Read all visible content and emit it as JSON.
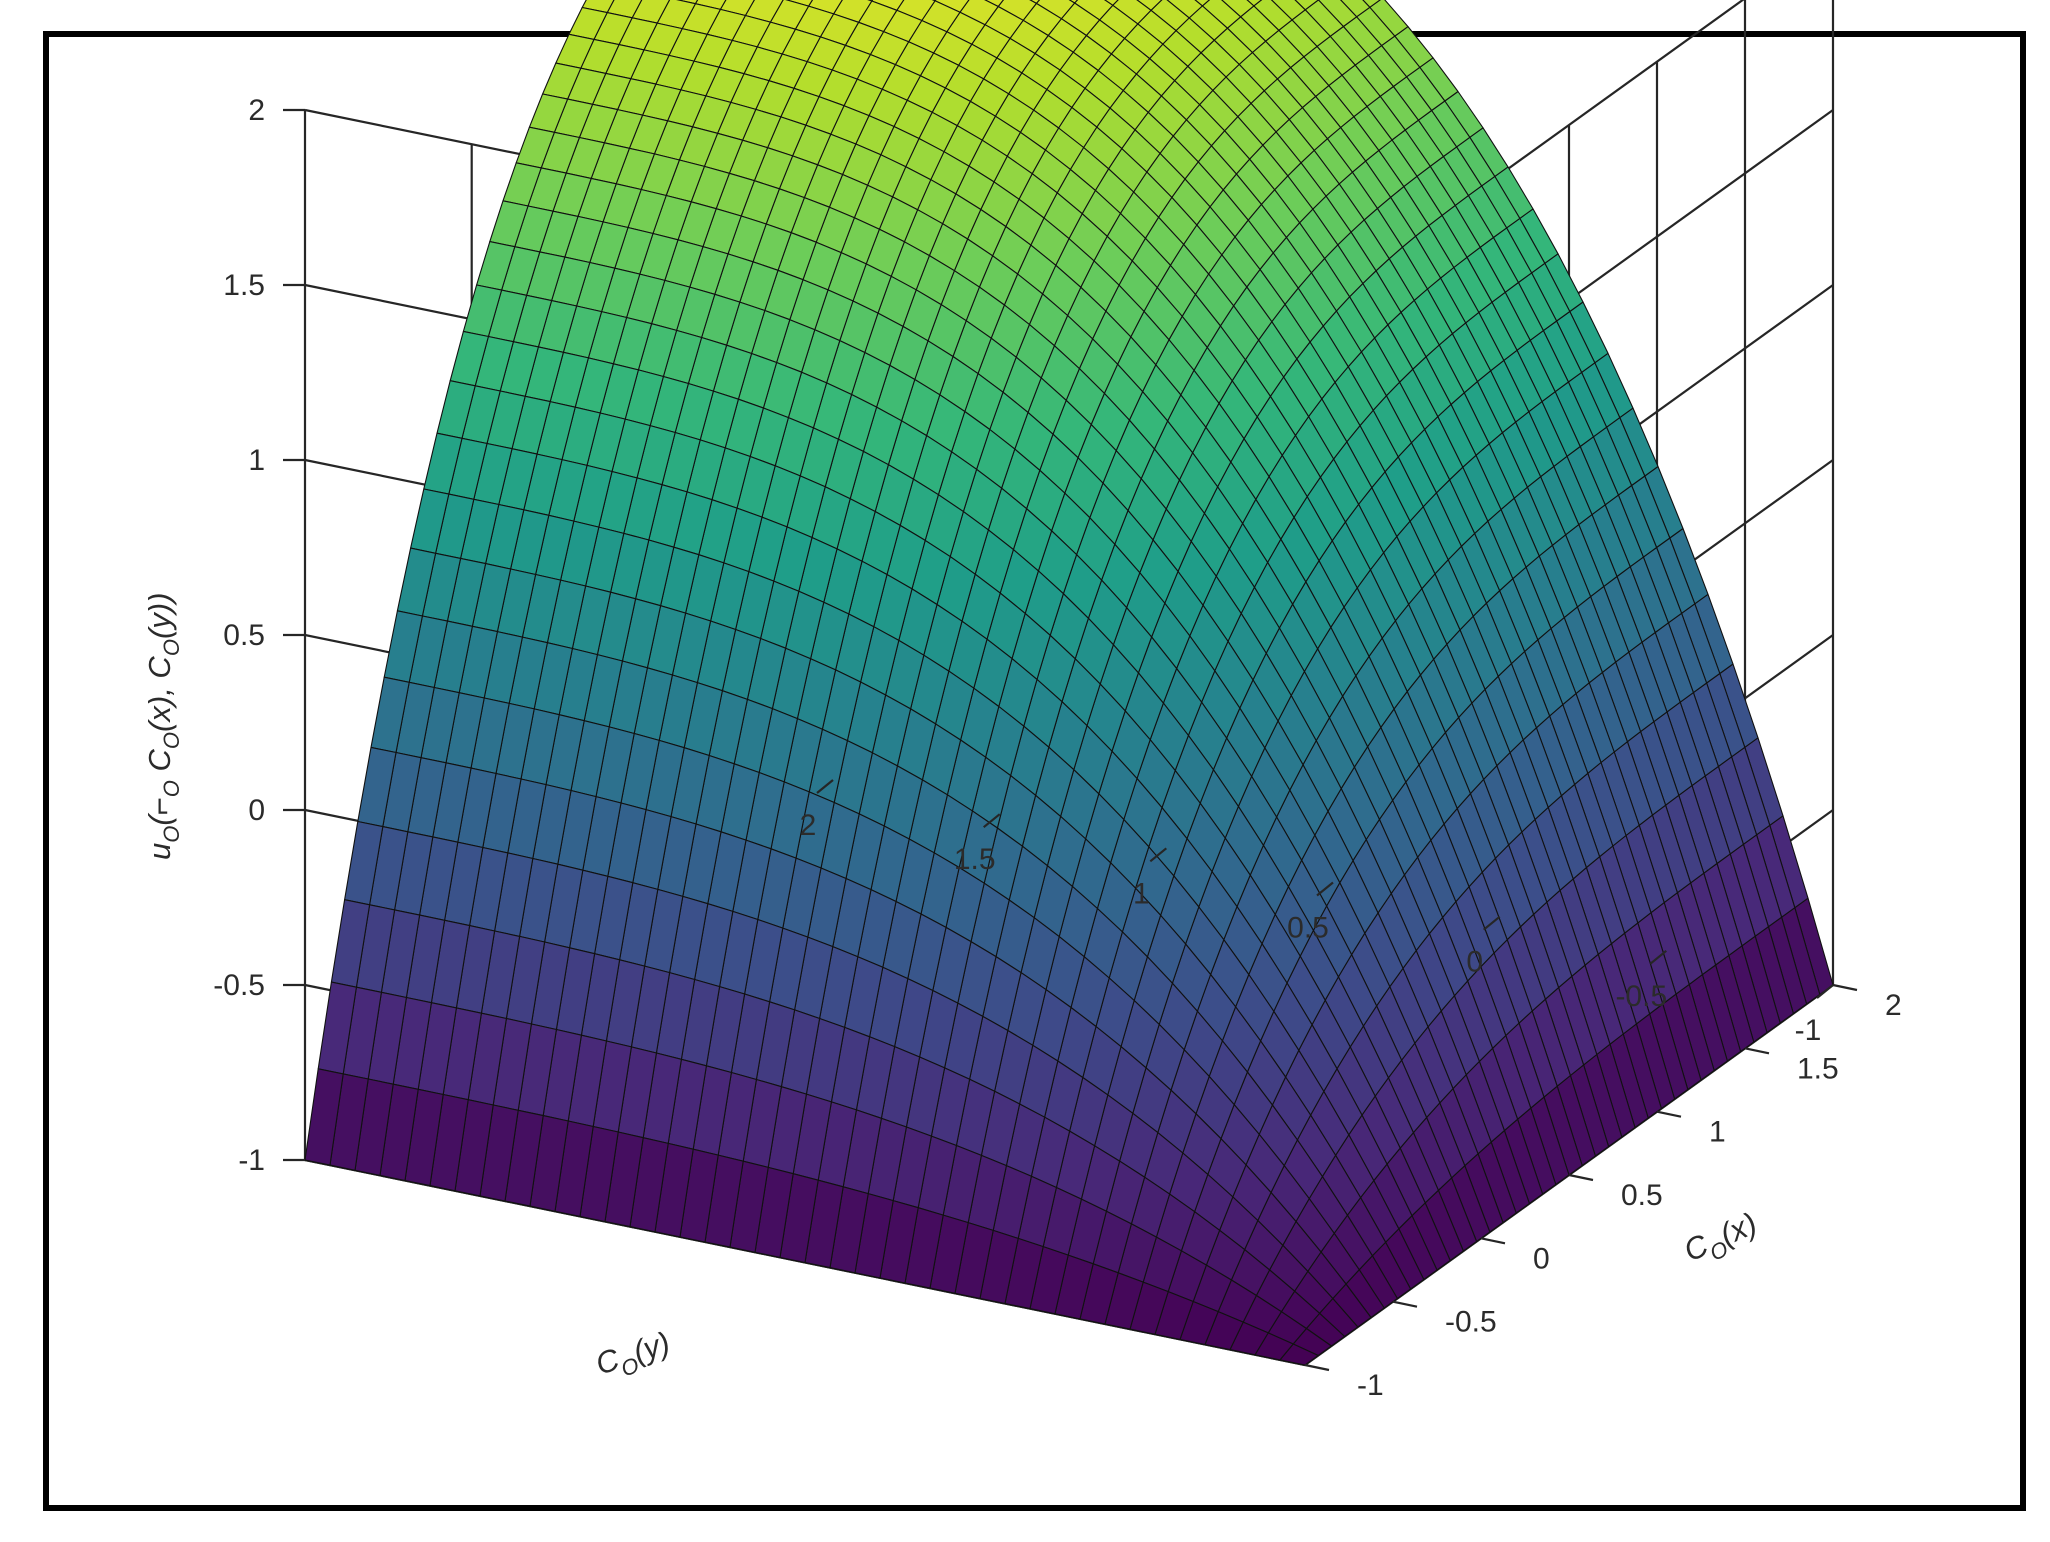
{
  "chart_data": {
    "type": "surface",
    "title": "",
    "xlabel": "C_O(x)",
    "ylabel": "C_O(y)",
    "zlabel": "u_O(⌐_O C_O(x), C_O(y))",
    "xlim": [
      -1,
      2
    ],
    "ylim": [
      -1,
      2
    ],
    "zlim": [
      -1,
      2
    ],
    "x_ticks": [
      "-1",
      "-0.5",
      "0",
      "0.5",
      "1",
      "1.5",
      "2"
    ],
    "y_ticks": [
      "-1",
      "-0.5",
      "0",
      "0.5",
      "1",
      "1.5",
      "2"
    ],
    "z_ticks": [
      "-1",
      "-0.5",
      "0",
      "0.5",
      "1",
      "1.5",
      "2"
    ],
    "grid": true,
    "colormap": "viridis",
    "grid_resolution": 41,
    "surface_shape": "smooth saddle: z ≈ -1 along x=-1 and along y=-1, z ≈ 2 along x=2 and along y=2, rising steeply near the x=-1 and y=-1 edges",
    "sample_values": [
      {
        "x": -1,
        "y": -1,
        "z": -1
      },
      {
        "x": 2,
        "y": -1,
        "z": -1
      },
      {
        "x": -1,
        "y": 2,
        "z": -1
      },
      {
        "x": 2,
        "y": 2,
        "z": 2
      },
      {
        "x": 0.5,
        "y": 0.5,
        "z": 0.5
      }
    ],
    "colors": {
      "low": "#440154",
      "mid": "#21918c",
      "high": "#fde725",
      "grid": "#262626",
      "frame": "#000000"
    }
  },
  "axis_labels": {
    "z": {
      "prefix": "u",
      "sub1": "O",
      "mid": "(⌐",
      "sub2": "O",
      "mid2": " C",
      "sub3": "O",
      "mid3": "(x), C",
      "sub4": "O",
      "end": "(y))"
    },
    "x": {
      "prefix": "C",
      "sub": "O",
      "end": "(x)"
    },
    "y": {
      "prefix": "C",
      "sub": "O",
      "end": "(y)"
    }
  }
}
